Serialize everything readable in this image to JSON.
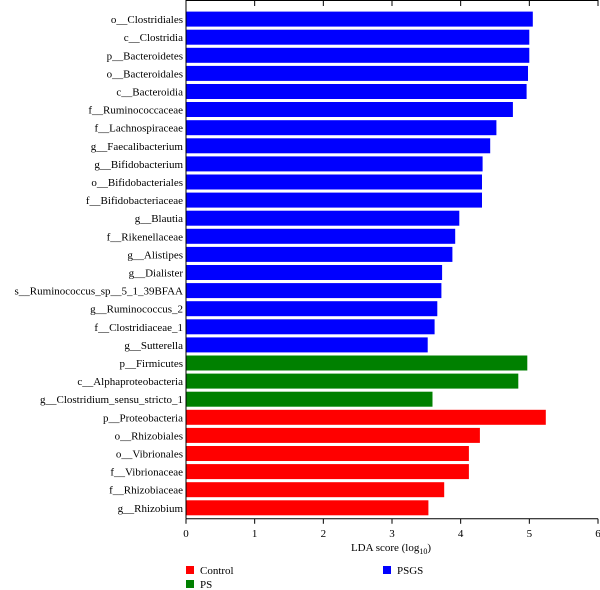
{
  "chart_data": {
    "type": "bar",
    "orientation": "horizontal",
    "xlabel": "LDA score (log10)",
    "xlabel_base": "LDA score (log",
    "xlabel_sub": "10",
    "xlabel_close": ")",
    "xlim": [
      0,
      6
    ],
    "xticks": [
      "0",
      "1",
      "2",
      "3",
      "4",
      "5",
      "6"
    ],
    "grid": false,
    "legend_position": "bottom",
    "colors": {
      "Control": "#ff0000",
      "PS": "#008000",
      "PSGS": "#0000ff"
    },
    "legend": [
      {
        "name": "Control",
        "color": "#ff0000"
      },
      {
        "name": "PS",
        "color": "#008000"
      },
      {
        "name": "PSGS",
        "color": "#0000ff"
      }
    ],
    "bars": [
      {
        "label": "o__Clostridiales",
        "value": 5.05,
        "group": "PSGS"
      },
      {
        "label": "c__Clostridia",
        "value": 5.0,
        "group": "PSGS"
      },
      {
        "label": "p__Bacteroidetes",
        "value": 5.0,
        "group": "PSGS"
      },
      {
        "label": "o__Bacteroidales",
        "value": 4.98,
        "group": "PSGS"
      },
      {
        "label": "c__Bacteroidia",
        "value": 4.96,
        "group": "PSGS"
      },
      {
        "label": "f__Ruminococcaceae",
        "value": 4.76,
        "group": "PSGS"
      },
      {
        "label": "f__Lachnospiraceae",
        "value": 4.52,
        "group": "PSGS"
      },
      {
        "label": "g__Faecalibacterium",
        "value": 4.43,
        "group": "PSGS"
      },
      {
        "label": "g__Bifidobacterium",
        "value": 4.32,
        "group": "PSGS"
      },
      {
        "label": "o__Bifidobacteriales",
        "value": 4.31,
        "group": "PSGS"
      },
      {
        "label": "f__Bifidobacteriaceae",
        "value": 4.31,
        "group": "PSGS"
      },
      {
        "label": "g__Blautia",
        "value": 3.98,
        "group": "PSGS"
      },
      {
        "label": "f__Rikenellaceae",
        "value": 3.92,
        "group": "PSGS"
      },
      {
        "label": "g__Alistipes",
        "value": 3.88,
        "group": "PSGS"
      },
      {
        "label": "g__Dialister",
        "value": 3.73,
        "group": "PSGS"
      },
      {
        "label": "s__Ruminococcus_sp__5_1_39BFAA",
        "value": 3.72,
        "group": "PSGS"
      },
      {
        "label": "g__Ruminococcus_2",
        "value": 3.66,
        "group": "PSGS"
      },
      {
        "label": "f__Clostridiaceae_1",
        "value": 3.62,
        "group": "PSGS"
      },
      {
        "label": "g__Sutterella",
        "value": 3.52,
        "group": "PSGS"
      },
      {
        "label": "p__Firmicutes",
        "value": 4.97,
        "group": "PS"
      },
      {
        "label": "c__Alphaproteobacteria",
        "value": 4.84,
        "group": "PS"
      },
      {
        "label": "g__Clostridium_sensu_stricto_1",
        "value": 3.59,
        "group": "PS"
      },
      {
        "label": "p__Proteobacteria",
        "value": 5.24,
        "group": "Control"
      },
      {
        "label": "o__Rhizobiales",
        "value": 4.28,
        "group": "Control"
      },
      {
        "label": "o__Vibrionales",
        "value": 4.12,
        "group": "Control"
      },
      {
        "label": "f__Vibrionaceae",
        "value": 4.12,
        "group": "Control"
      },
      {
        "label": "f__Rhizobiaceae",
        "value": 3.76,
        "group": "Control"
      },
      {
        "label": "g__Rhizobium",
        "value": 3.53,
        "group": "Control"
      }
    ]
  }
}
